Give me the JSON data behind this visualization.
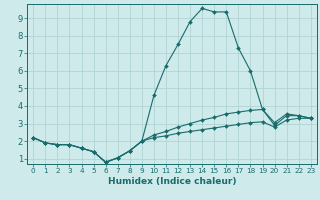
{
  "xlabel": "Humidex (Indice chaleur)",
  "xlim": [
    -0.5,
    23.5
  ],
  "ylim": [
    0.7,
    9.8
  ],
  "yticks": [
    1,
    2,
    3,
    4,
    5,
    6,
    7,
    8,
    9
  ],
  "xticks": [
    0,
    1,
    2,
    3,
    4,
    5,
    6,
    7,
    8,
    9,
    10,
    11,
    12,
    13,
    14,
    15,
    16,
    17,
    18,
    19,
    20,
    21,
    22,
    23
  ],
  "bg_color": "#ceeaea",
  "grid_color": "#acd0d0",
  "line_color": "#1a6b6b",
  "lines": [
    {
      "x": [
        0,
        1,
        2,
        3,
        4,
        5,
        6,
        7,
        8,
        9,
        10,
        11,
        12,
        13,
        14,
        15,
        16,
        17,
        18,
        19,
        20,
        21,
        22,
        23
      ],
      "y": [
        2.2,
        1.9,
        1.8,
        1.8,
        1.6,
        1.4,
        0.8,
        1.05,
        1.45,
        2.0,
        4.6,
        6.3,
        7.5,
        8.8,
        9.55,
        9.35,
        9.35,
        7.3,
        6.0,
        3.8,
        2.9,
        3.45,
        3.45,
        3.3
      ]
    },
    {
      "x": [
        0,
        1,
        2,
        3,
        4,
        5,
        6,
        7,
        8,
        9,
        10,
        11,
        12,
        13,
        14,
        15,
        16,
        17,
        18,
        19,
        20,
        21,
        22,
        23
      ],
      "y": [
        2.2,
        1.9,
        1.8,
        1.8,
        1.6,
        1.4,
        0.8,
        1.05,
        1.45,
        2.0,
        2.35,
        2.55,
        2.8,
        3.0,
        3.2,
        3.35,
        3.55,
        3.65,
        3.75,
        3.8,
        3.05,
        3.55,
        3.45,
        3.3
      ]
    },
    {
      "x": [
        0,
        1,
        2,
        3,
        4,
        5,
        6,
        7,
        8,
        9,
        10,
        11,
        12,
        13,
        14,
        15,
        16,
        17,
        18,
        19,
        20,
        21,
        22,
        23
      ],
      "y": [
        2.2,
        1.9,
        1.8,
        1.8,
        1.6,
        1.4,
        0.8,
        1.05,
        1.45,
        2.0,
        2.2,
        2.3,
        2.45,
        2.55,
        2.65,
        2.75,
        2.85,
        2.95,
        3.05,
        3.1,
        2.8,
        3.2,
        3.3,
        3.3
      ]
    }
  ]
}
